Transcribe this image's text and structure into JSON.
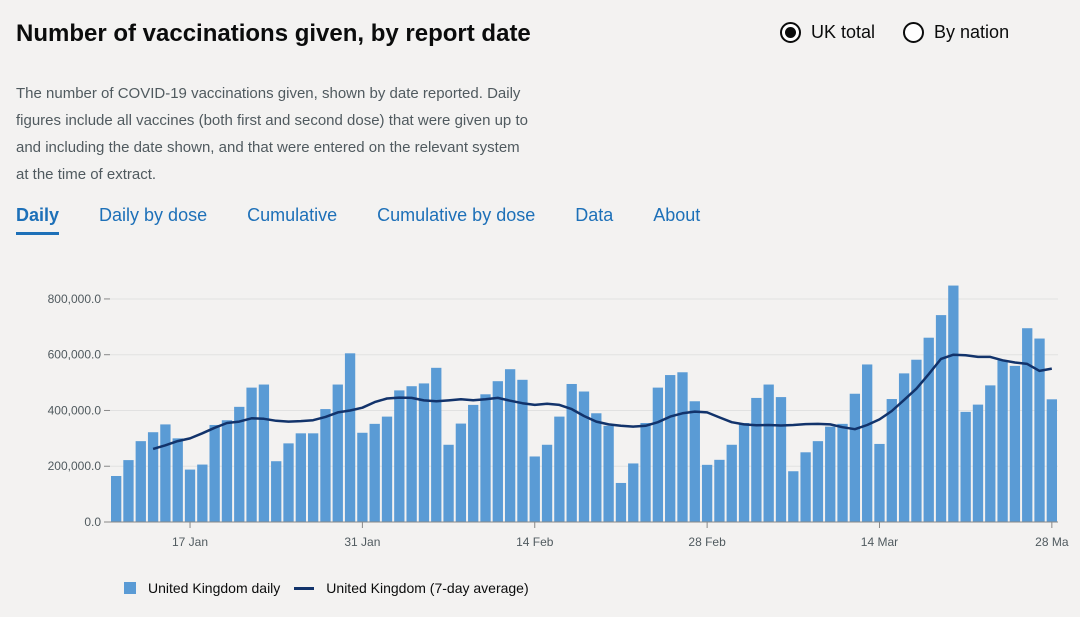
{
  "header": {
    "title": "Number of vaccinations given, by report date",
    "description": "The number of COVID-19 vaccinations given, shown by date reported. Daily figures include all vaccines (both first and second dose) that were given up to and including the date shown, and that were entered on the relevant system at the time of extract."
  },
  "radios": [
    {
      "label": "UK total",
      "checked": true
    },
    {
      "label": "By nation",
      "checked": false
    }
  ],
  "tabs": [
    {
      "label": "Daily",
      "active": true
    },
    {
      "label": "Daily by dose",
      "active": false
    },
    {
      "label": "Cumulative",
      "active": false
    },
    {
      "label": "Cumulative by dose",
      "active": false
    },
    {
      "label": "Data",
      "active": false
    },
    {
      "label": "About",
      "active": false
    }
  ],
  "legend": {
    "daily": "United Kingdom daily",
    "average": "United Kingdom (7-day average)"
  },
  "colors": {
    "bar": "#5a9bd5",
    "line": "#12336b",
    "link": "#1d70b8"
  },
  "chart_data": {
    "type": "bar",
    "ylim": [
      0,
      850000
    ],
    "yticks": [
      {
        "value": 0,
        "label": "0.0"
      },
      {
        "value": 200000,
        "label": "200,000.0"
      },
      {
        "value": 400000,
        "label": "400,000.0"
      },
      {
        "value": 600000,
        "label": "600,000.0"
      },
      {
        "value": 800000,
        "label": "800,000.0"
      }
    ],
    "xticks": [
      {
        "index": 6,
        "label": "17 Jan"
      },
      {
        "index": 20,
        "label": "31 Jan"
      },
      {
        "index": 34,
        "label": "14 Feb"
      },
      {
        "index": 48,
        "label": "28 Feb"
      },
      {
        "index": 62,
        "label": "14 Mar"
      },
      {
        "index": 76,
        "label": "28 Ma"
      }
    ],
    "grid": "horizontal",
    "legend_position": "bottom-left",
    "series": [
      {
        "name": "United Kingdom daily",
        "type": "bar",
        "values": [
          165000,
          222000,
          290000,
          322000,
          350000,
          300000,
          188000,
          206000,
          348000,
          365000,
          413000,
          482000,
          493000,
          218000,
          282000,
          318000,
          318000,
          405000,
          493000,
          605000,
          320000,
          352000,
          378000,
          472000,
          487000,
          497000,
          553000,
          277000,
          353000,
          420000,
          458000,
          505000,
          548000,
          510000,
          235000,
          277000,
          378000,
          495000,
          468000,
          390000,
          345000,
          140000,
          210000,
          355000,
          482000,
          527000,
          537000,
          433000,
          205000,
          223000,
          277000,
          355000,
          445000,
          493000,
          448000,
          182000,
          250000,
          290000,
          342000,
          352000,
          460000,
          565000,
          280000,
          441000,
          533000,
          582000,
          661000,
          742000,
          848000,
          395000,
          421000,
          490000,
          580000,
          560000,
          695000,
          658000,
          440000
        ]
      },
      {
        "name": "United Kingdom (7-day average)",
        "type": "line",
        "values": [
          null,
          null,
          null,
          262000,
          275000,
          290000,
          300000,
          318000,
          338000,
          355000,
          360000,
          372000,
          370000,
          363000,
          360000,
          362000,
          365000,
          377000,
          393000,
          400000,
          410000,
          430000,
          443000,
          446000,
          445000,
          436000,
          433000,
          436000,
          440000,
          437000,
          440000,
          445000,
          435000,
          426000,
          420000,
          424000,
          420000,
          405000,
          380000,
          360000,
          350000,
          345000,
          342000,
          345000,
          358000,
          378000,
          390000,
          396000,
          393000,
          375000,
          358000,
          350000,
          347000,
          348000,
          346000,
          348000,
          351000,
          352000,
          350000,
          340000,
          333000,
          348000,
          368000,
          398000,
          438000,
          478000,
          530000,
          585000,
          600000,
          598000,
          592000,
          592000,
          580000,
          572000,
          567000,
          542000,
          550000
        ]
      }
    ]
  }
}
